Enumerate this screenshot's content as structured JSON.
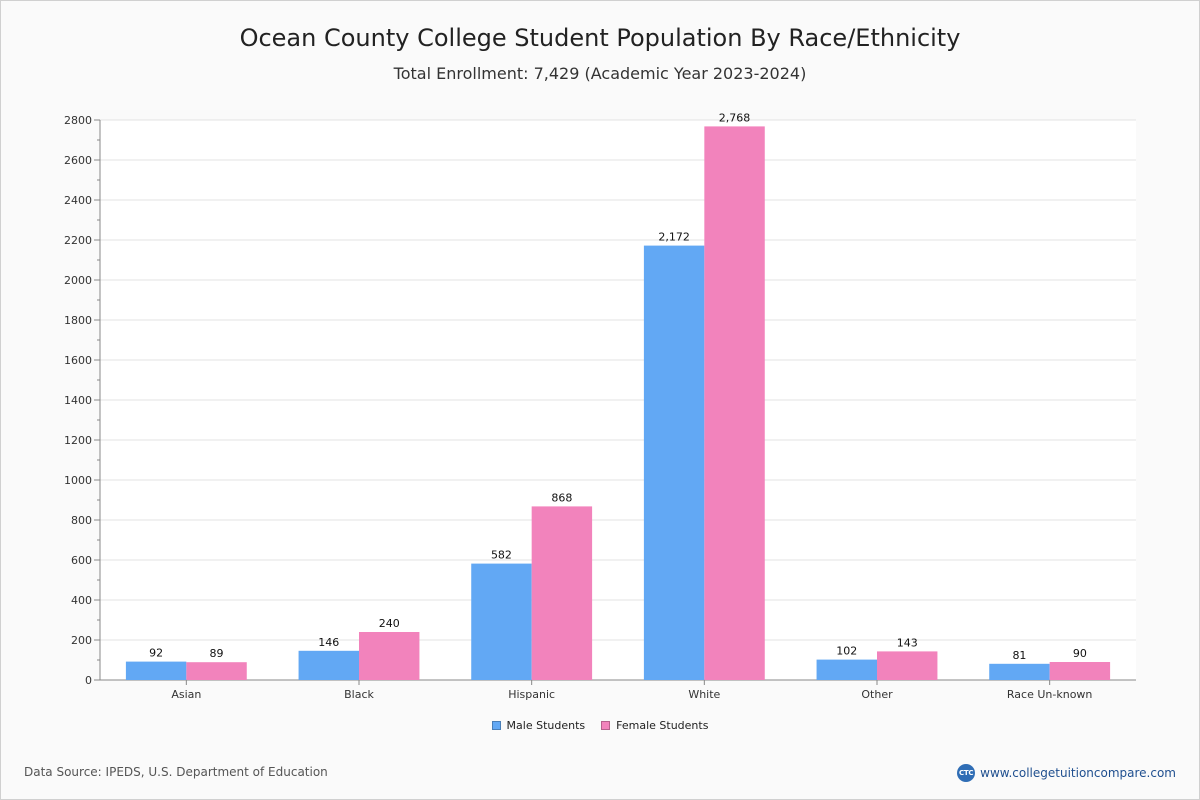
{
  "chart_data": {
    "type": "bar",
    "title": "Ocean County College Student Population By Race/Ethnicity",
    "subtitle": "Total Enrollment: 7,429 (Academic Year 2023-2024)",
    "categories": [
      "Asian",
      "Black",
      "Hispanic",
      "White",
      "Other",
      "Race Un-known"
    ],
    "series": [
      {
        "name": "Male Students",
        "color": "#62a8f4",
        "values": [
          92,
          146,
          582,
          2172,
          102,
          81
        ],
        "labels": [
          "92",
          "146",
          "582",
          "2,172",
          "102",
          "81"
        ]
      },
      {
        "name": "Female Students",
        "color": "#f283bc",
        "values": [
          89,
          240,
          868,
          2768,
          143,
          90
        ],
        "labels": [
          "89",
          "240",
          "868",
          "2,768",
          "143",
          "90"
        ]
      }
    ],
    "ylim": [
      0,
      2800
    ],
    "yticks": [
      0,
      200,
      400,
      600,
      800,
      1000,
      1200,
      1400,
      1600,
      1800,
      2000,
      2200,
      2400,
      2600,
      2800
    ],
    "grid": true,
    "legend_position": "bottom-center"
  },
  "footer": {
    "source": "Data Source: IPEDS, U.S. Department of Education",
    "brand_icon_text": "CTC",
    "brand": "www.collegetuitioncompare.com"
  }
}
